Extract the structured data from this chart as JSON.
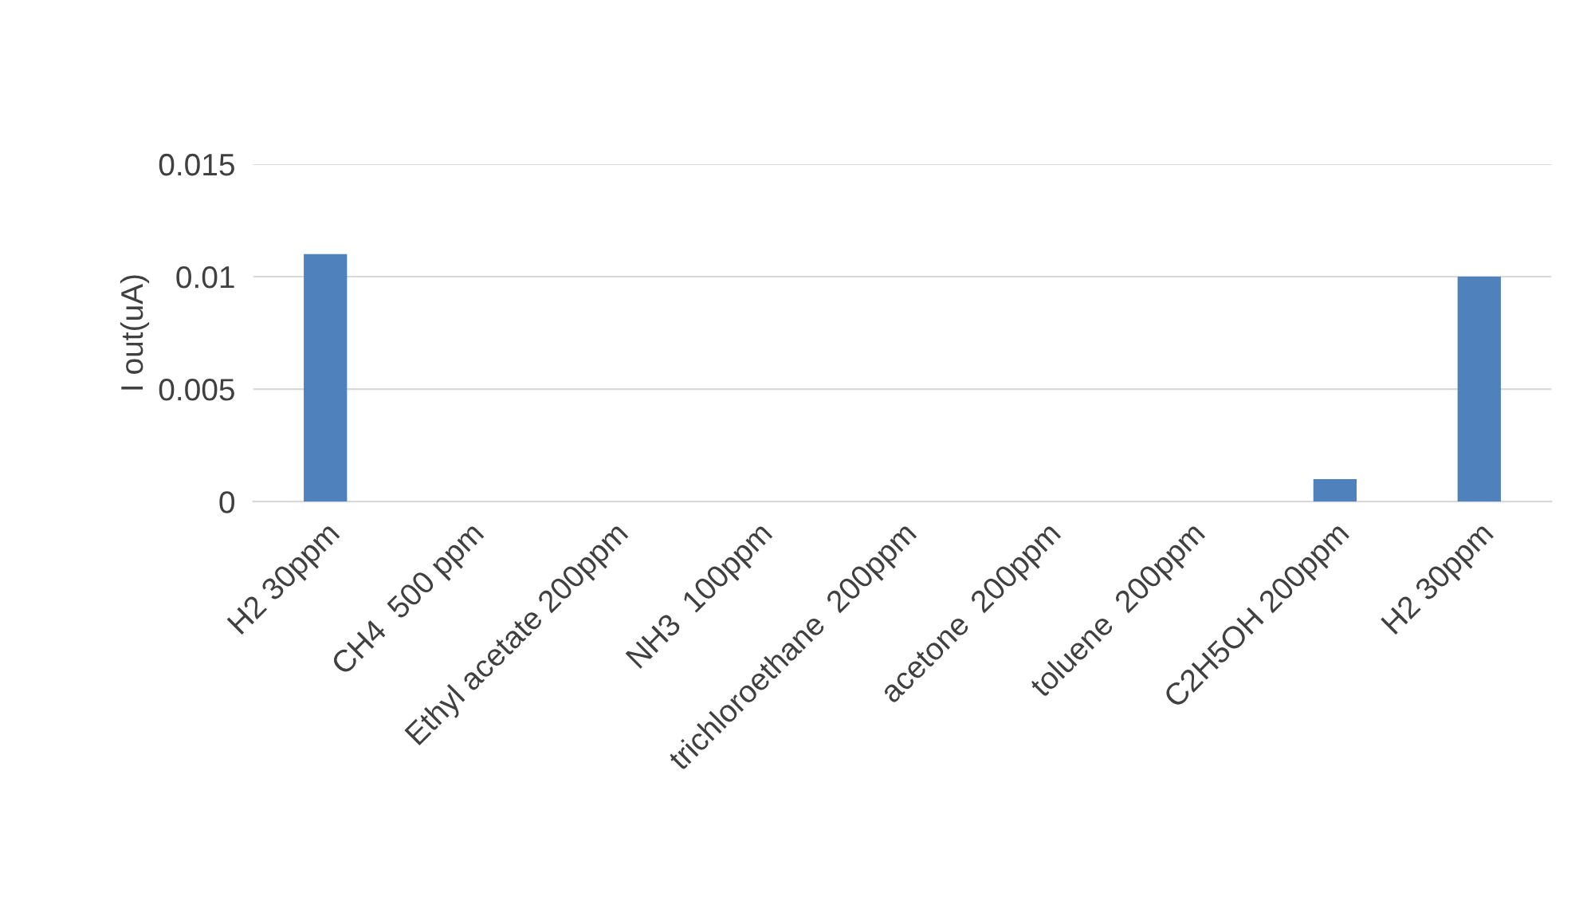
{
  "chart_data": {
    "type": "bar",
    "ylabel": "I out(uA)",
    "categories": [
      "H2 30ppm",
      "CH4  500 ppm",
      "Ethyl acetate 200ppm",
      "NH3  100ppm",
      "trichloroethane  200ppm",
      "acetone  200ppm",
      "toluene  200ppm",
      "C2H5OH 200ppm",
      "H2 30ppm"
    ],
    "values": [
      0.011,
      0,
      0,
      0,
      0,
      0,
      0,
      0.001,
      0.01
    ],
    "color": "#4f81bd",
    "ylim": [
      0,
      0.015
    ],
    "yticks": [
      0,
      0.005,
      0.01,
      0.015
    ],
    "grid": "y"
  }
}
